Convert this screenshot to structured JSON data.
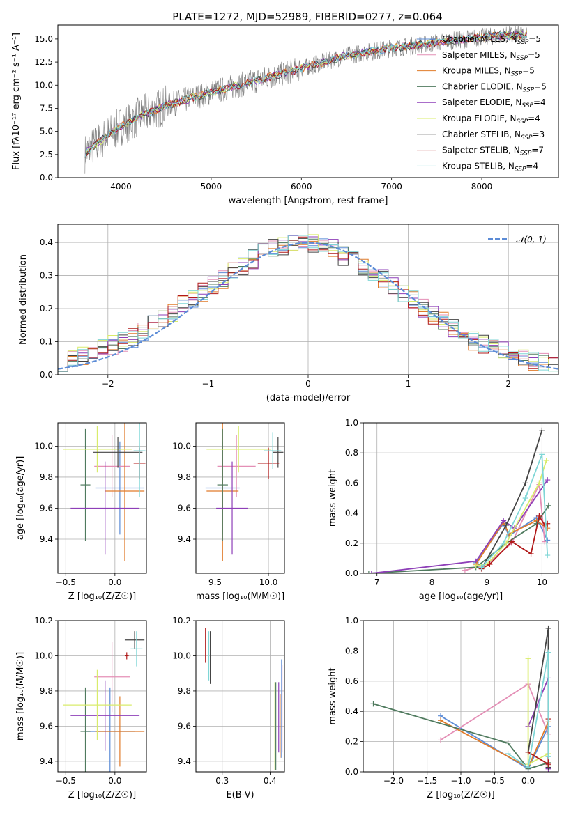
{
  "figure": {
    "title": "PLATE=1272, MJD=52989, FIBERID=0277, z=0.064"
  },
  "colors": {
    "Chabrier MILES": "#5b8bd6",
    "Salpeter MILES": "#e48fb6",
    "Kroupa MILES": "#e07b2a",
    "Chabrier ELODIE": "#4f7a5e",
    "Salpeter ELODIE": "#8e3fb8",
    "Kroupa ELODIE": "#d9ec6b",
    "Chabrier STELIB": "#444444",
    "Salpeter STELIB": "#b11a1a",
    "Kroupa STELIB": "#7fd6d6",
    "data": "#808080",
    "normal": "#5b8bd6"
  },
  "chart_data": [
    {
      "id": "spectrum",
      "type": "line",
      "title": "PLATE=1272, MJD=52989, FIBERID=0277, z=0.064",
      "xlabel": "wavelength [Angstrom, rest frame]",
      "ylabel": "Flux [fλ10⁻¹⁷ erg cm⁻² s⁻¹ A⁻¹]",
      "xlim": [
        3300,
        8850
      ],
      "ylim": [
        0,
        16.5
      ],
      "xticks": [
        4000,
        5000,
        6000,
        7000,
        8000
      ],
      "yticks": [
        0.0,
        2.5,
        5.0,
        7.5,
        10.0,
        12.5,
        15.0
      ],
      "legend": "top-right",
      "spectrum_shape_x": [
        3600,
        3800,
        4000,
        4200,
        4500,
        5000,
        5500,
        6000,
        6500,
        7000,
        7500,
        8000,
        8500
      ],
      "spectrum_shape_y": [
        2.6,
        4.2,
        5.6,
        6.6,
        7.8,
        9.2,
        10.5,
        11.8,
        13.2,
        14.0,
        14.6,
        15.2,
        15.5
      ],
      "series": [
        {
          "name": "Chabrier MILES, N_SSP=5",
          "legend_main": "Chabrier MILES, N",
          "legend_sub": "SSP",
          "legend_tail": "=5",
          "key": "Chabrier MILES"
        },
        {
          "name": "Salpeter MILES, N_SSP=5",
          "legend_main": "Salpeter MILES, N",
          "legend_sub": "SSP",
          "legend_tail": "=5",
          "key": "Salpeter MILES"
        },
        {
          "name": "Kroupa MILES, N_SSP=5",
          "legend_main": "Kroupa MILES, N",
          "legend_sub": "SSP",
          "legend_tail": "=5",
          "key": "Kroupa MILES"
        },
        {
          "name": "Chabrier ELODIE, N_SSP=5",
          "legend_main": "Chabrier ELODIE, N",
          "legend_sub": "SSP",
          "legend_tail": "=5",
          "key": "Chabrier ELODIE"
        },
        {
          "name": "Salpeter ELODIE, N_SSP=4",
          "legend_main": "Salpeter ELODIE, N",
          "legend_sub": "SSP",
          "legend_tail": "=4",
          "key": "Salpeter ELODIE"
        },
        {
          "name": "Kroupa ELODIE, N_SSP=4",
          "legend_main": "Kroupa ELODIE, N",
          "legend_sub": "SSP",
          "legend_tail": "=4",
          "key": "Kroupa ELODIE"
        },
        {
          "name": "Chabrier STELIB, N_SSP=3",
          "legend_main": "Chabrier STELIB, N",
          "legend_sub": "SSP",
          "legend_tail": "=3",
          "key": "Chabrier STELIB"
        },
        {
          "name": "Salpeter STELIB, N_SSP=7",
          "legend_main": "Salpeter STELIB, N",
          "legend_sub": "SSP",
          "legend_tail": "=7",
          "key": "Salpeter STELIB"
        },
        {
          "name": "Kroupa STELIB, N_SSP=4",
          "legend_main": "Kroupa STELIB, N",
          "legend_sub": "SSP",
          "legend_tail": "=4",
          "key": "Kroupa STELIB"
        }
      ]
    },
    {
      "id": "residuals",
      "type": "line",
      "xlabel": "(data-model)/error",
      "ylabel": "Normed distribution",
      "xlim": [
        -2.5,
        2.5
      ],
      "ylim": [
        0,
        0.455
      ],
      "xticks": [
        -2,
        -1,
        0,
        1,
        2
      ],
      "yticks": [
        0.0,
        0.1,
        0.2,
        0.3,
        0.4
      ],
      "grid": true,
      "legend": "top-right",
      "normal_label": "𝒩(0, 1)",
      "normal_mean": 0,
      "normal_sigma": 1,
      "bin_width": 0.1,
      "histogram_shape": [
        0.04,
        0.05,
        0.06,
        0.07,
        0.08,
        0.09,
        0.1,
        0.11,
        0.13,
        0.15,
        0.17,
        0.19,
        0.21,
        0.23,
        0.25,
        0.27,
        0.29,
        0.31,
        0.33,
        0.35,
        0.37,
        0.38,
        0.39,
        0.4,
        0.4,
        0.4,
        0.39,
        0.38,
        0.36,
        0.35,
        0.33,
        0.31,
        0.29,
        0.27,
        0.25,
        0.23,
        0.2,
        0.18,
        0.16,
        0.14,
        0.12,
        0.1,
        0.09,
        0.08,
        0.07,
        0.06,
        0.05,
        0.04,
        0.04,
        0.03
      ]
    },
    {
      "id": "age_vs_Z",
      "type": "scatter",
      "xlabel": "Z [log₁₀(Z/Z☉)]",
      "ylabel": "age  [log₁₀(age/yr)]",
      "xlim": [
        -0.58,
        0.32
      ],
      "ylim": [
        9.18,
        10.15
      ],
      "xticks": [
        -0.5,
        0.0
      ],
      "yticks": [
        9.4,
        9.6,
        9.8,
        10.0
      ],
      "grid": true,
      "points": [
        {
          "key": "Chabrier MILES",
          "x": 0.05,
          "y": 9.73,
          "xerr": 0.25,
          "yerr": 0.3
        },
        {
          "key": "Salpeter MILES",
          "x": -0.03,
          "y": 9.87,
          "xerr": 0.18,
          "yerr": 0.2
        },
        {
          "key": "Kroupa MILES",
          "x": 0.1,
          "y": 9.71,
          "xerr": 0.2,
          "yerr": 0.45
        },
        {
          "key": "Chabrier ELODIE",
          "x": -0.3,
          "y": 9.75,
          "xerr": 0.05,
          "yerr": 0.36
        },
        {
          "key": "Salpeter ELODIE",
          "x": -0.1,
          "y": 9.6,
          "xerr": 0.35,
          "yerr": 0.3
        },
        {
          "key": "Kroupa ELODIE",
          "x": -0.18,
          "y": 9.98,
          "xerr": 0.35,
          "yerr": 0.15
        },
        {
          "key": "Chabrier STELIB",
          "x": 0.03,
          "y": 9.96,
          "xerr": 0.25,
          "yerr": 0.1
        },
        {
          "key": "Salpeter STELIB",
          "x": 0.25,
          "y": 9.89,
          "xerr": 0.06,
          "yerr": 0.1
        },
        {
          "key": "Kroupa STELIB",
          "x": 0.25,
          "y": 9.97,
          "xerr": 0.06,
          "yerr": 0.3
        }
      ]
    },
    {
      "id": "age_vs_mass",
      "type": "scatter",
      "xlabel": "mass [log₁₀(M/M☉)]",
      "xlim": [
        9.32,
        10.15
      ],
      "ylim": [
        9.18,
        10.15
      ],
      "xticks": [
        9.5,
        10.0
      ],
      "yticks": [
        9.4,
        9.6,
        9.8,
        10.0
      ],
      "grid": true,
      "points": [
        {
          "key": "Chabrier MILES",
          "x": 9.57,
          "y": 9.73,
          "xerr": 0.16,
          "yerr": 0.3
        },
        {
          "key": "Salpeter MILES",
          "x": 9.7,
          "y": 9.87,
          "xerr": 0.18,
          "yerr": 0.2
        },
        {
          "key": "Kroupa MILES",
          "x": 9.57,
          "y": 9.71,
          "xerr": 0.15,
          "yerr": 0.45
        },
        {
          "key": "Chabrier ELODIE",
          "x": 9.57,
          "y": 9.75,
          "xerr": 0.05,
          "yerr": 0.36
        },
        {
          "key": "Salpeter ELODIE",
          "x": 9.66,
          "y": 9.6,
          "xerr": 0.15,
          "yerr": 0.3
        },
        {
          "key": "Kroupa ELODIE",
          "x": 9.72,
          "y": 9.98,
          "xerr": 0.3,
          "yerr": 0.15
        },
        {
          "key": "Chabrier STELIB",
          "x": 10.09,
          "y": 9.96,
          "xerr": 0.05,
          "yerr": 0.1
        },
        {
          "key": "Salpeter STELIB",
          "x": 10.0,
          "y": 9.89,
          "xerr": 0.1,
          "yerr": 0.1
        },
        {
          "key": "Kroupa STELIB",
          "x": 10.04,
          "y": 9.97,
          "xerr": 0.08,
          "yerr": 0.12
        }
      ]
    },
    {
      "id": "weight_vs_age",
      "type": "line",
      "xlabel": "age  [log₁₀(age/yr)]",
      "ylabel": "mass weight",
      "xlim": [
        6.75,
        10.3
      ],
      "ylim": [
        0,
        1.0
      ],
      "xticks": [
        7,
        8,
        9,
        10
      ],
      "yticks": [
        0.0,
        0.2,
        0.4,
        0.6,
        0.8,
        1.0
      ],
      "grid": true,
      "series": [
        {
          "key": "Chabrier MILES",
          "x": [
            8.8,
            9.3,
            9.4,
            9.9,
            10.1
          ],
          "y": [
            0.07,
            0.33,
            0.25,
            0.37,
            0.22
          ]
        },
        {
          "key": "Salpeter MILES",
          "x": [
            8.6,
            9.0,
            9.45,
            9.95,
            10.05
          ],
          "y": [
            0.02,
            0.06,
            0.2,
            0.59,
            0.21
          ]
        },
        {
          "key": "Kroupa MILES",
          "x": [
            8.8,
            9.3,
            9.4,
            9.9,
            10.1
          ],
          "y": [
            0.06,
            0.34,
            0.26,
            0.35,
            0.3
          ]
        },
        {
          "key": "Chabrier ELODIE",
          "x": [
            6.85,
            8.8,
            9.35,
            9.9,
            10.12
          ],
          "y": [
            0.0,
            0.04,
            0.2,
            0.33,
            0.45
          ]
        },
        {
          "key": "Salpeter ELODIE",
          "x": [
            6.9,
            8.8,
            9.3,
            9.5,
            10.1
          ],
          "y": [
            0.0,
            0.08,
            0.35,
            0.3,
            0.62
          ]
        },
        {
          "key": "Kroupa ELODIE",
          "x": [
            8.8,
            9.0,
            9.35,
            9.95,
            10.08
          ],
          "y": [
            0.05,
            0.06,
            0.2,
            0.6,
            0.75
          ]
        },
        {
          "key": "Chabrier STELIB",
          "x": [
            8.9,
            9.35,
            9.7,
            10.0
          ],
          "y": [
            0.03,
            0.32,
            0.6,
            0.95
          ]
        },
        {
          "key": "Salpeter STELIB",
          "x": [
            8.9,
            9.05,
            9.45,
            9.8,
            9.95,
            10.05,
            10.1
          ],
          "y": [
            0.03,
            0.06,
            0.21,
            0.13,
            0.38,
            0.32,
            0.33
          ]
        },
        {
          "key": "Kroupa STELIB",
          "x": [
            8.9,
            9.3,
            9.7,
            10.0,
            10.1
          ],
          "y": [
            0.04,
            0.2,
            0.5,
            0.79,
            0.12
          ]
        }
      ]
    },
    {
      "id": "mass_vs_Z",
      "type": "scatter",
      "xlabel": "Z [log₁₀(Z/Z☉)]",
      "ylabel": "mass [log₁₀(M/M☉)]",
      "xlim": [
        -0.58,
        0.32
      ],
      "ylim": [
        9.34,
        10.2
      ],
      "xticks": [
        -0.5,
        0.0
      ],
      "yticks": [
        9.4,
        9.6,
        9.8,
        10.0,
        10.2
      ],
      "grid": true,
      "points": [
        {
          "key": "Chabrier MILES",
          "x": -0.05,
          "y": 9.57,
          "xerr": 0.25,
          "yerr": 0.25
        },
        {
          "key": "Salpeter MILES",
          "x": -0.03,
          "y": 9.88,
          "xerr": 0.18,
          "yerr": 0.2
        },
        {
          "key": "Kroupa MILES",
          "x": 0.05,
          "y": 9.57,
          "xerr": 0.25,
          "yerr": 0.2
        },
        {
          "key": "Chabrier ELODIE",
          "x": -0.3,
          "y": 9.57,
          "xerr": 0.05,
          "yerr": 0.25
        },
        {
          "key": "Salpeter ELODIE",
          "x": -0.1,
          "y": 9.66,
          "xerr": 0.35,
          "yerr": 0.2
        },
        {
          "key": "Kroupa ELODIE",
          "x": -0.18,
          "y": 9.72,
          "xerr": 0.35,
          "yerr": 0.2
        },
        {
          "key": "Chabrier STELIB",
          "x": 0.2,
          "y": 10.09,
          "xerr": 0.1,
          "yerr": 0.05
        },
        {
          "key": "Salpeter STELIB",
          "x": 0.12,
          "y": 10.0,
          "xerr": 0.02,
          "yerr": 0.02
        },
        {
          "key": "Kroupa STELIB",
          "x": 0.22,
          "y": 10.04,
          "xerr": 0.06,
          "yerr": 0.1
        }
      ]
    },
    {
      "id": "mass_vs_EBV",
      "type": "scatter",
      "xlabel": "E(B-V)",
      "xlim": [
        0.245,
        0.43
      ],
      "ylim": [
        9.34,
        10.2
      ],
      "xticks": [
        0.3,
        0.4
      ],
      "yticks": [
        9.4,
        9.6,
        9.8,
        10.0,
        10.2
      ],
      "grid": true,
      "points": [
        {
          "key": "Chabrier MILES",
          "x": 0.424,
          "y": 9.7,
          "xerr": 0.0,
          "yerr": 0.28
        },
        {
          "key": "Salpeter MILES",
          "x": 0.425,
          "y": 9.7,
          "xerr": 0.0,
          "yerr": 0.25
        },
        {
          "key": "Kroupa MILES",
          "x": 0.421,
          "y": 9.6,
          "xerr": 0.0,
          "yerr": 0.18
        },
        {
          "key": "Chabrier ELODIE",
          "x": 0.412,
          "y": 9.6,
          "xerr": 0.0,
          "yerr": 0.25
        },
        {
          "key": "Salpeter ELODIE",
          "x": 0.418,
          "y": 9.65,
          "xerr": 0.0,
          "yerr": 0.2
        },
        {
          "key": "Kroupa ELODIE",
          "x": 0.41,
          "y": 9.6,
          "xerr": 0.0,
          "yerr": 0.25
        },
        {
          "key": "Chabrier STELIB",
          "x": 0.275,
          "y": 9.99,
          "xerr": 0.0,
          "yerr": 0.15
        },
        {
          "key": "Salpeter STELIB",
          "x": 0.265,
          "y": 10.06,
          "xerr": 0.0,
          "yerr": 0.1
        },
        {
          "key": "Kroupa STELIB",
          "x": 0.272,
          "y": 10.0,
          "xerr": 0.0,
          "yerr": 0.14
        }
      ]
    },
    {
      "id": "weight_vs_Z",
      "type": "line",
      "xlabel": "Z [log₁₀(Z/Z☉)]",
      "ylabel": "mass weight",
      "xlim": [
        -2.45,
        0.45
      ],
      "ylim": [
        0,
        1.0
      ],
      "xticks": [
        -2.0,
        -1.5,
        -1.0,
        -0.5,
        0.0
      ],
      "yticks": [
        0.0,
        0.2,
        0.4,
        0.6,
        0.8,
        1.0
      ],
      "grid": true,
      "series": [
        {
          "key": "Chabrier MILES",
          "x": [
            -1.3,
            0.0,
            0.3,
            0.3
          ],
          "y": [
            0.37,
            0.02,
            0.3,
            0.05
          ]
        },
        {
          "key": "Salpeter MILES",
          "x": [
            -1.3,
            0.0,
            0.3,
            0.3
          ],
          "y": [
            0.21,
            0.58,
            0.25,
            0.02
          ]
        },
        {
          "key": "Kroupa MILES",
          "x": [
            -1.3,
            0.0,
            0.3,
            0.3
          ],
          "y": [
            0.34,
            0.03,
            0.33,
            0.04
          ]
        },
        {
          "key": "Chabrier ELODIE",
          "x": [
            -2.3,
            -0.3,
            0.0,
            0.3
          ],
          "y": [
            0.45,
            0.19,
            0.02,
            0.06
          ]
        },
        {
          "key": "Salpeter ELODIE",
          "x": [
            0.0,
            0.3,
            0.3
          ],
          "y": [
            0.3,
            0.62,
            0.02
          ]
        },
        {
          "key": "Kroupa ELODIE",
          "x": [
            0.0,
            0.0,
            0.3
          ],
          "y": [
            0.75,
            0.05,
            0.12
          ]
        },
        {
          "key": "Chabrier STELIB",
          "x": [
            0.0,
            0.3,
            0.3
          ],
          "y": [
            0.13,
            0.95,
            0.03
          ]
        },
        {
          "key": "Salpeter STELIB",
          "x": [
            0.0,
            0.3,
            0.3
          ],
          "y": [
            0.13,
            0.05,
            0.35
          ]
        },
        {
          "key": "Kroupa STELIB",
          "x": [
            -0.3,
            0.0,
            0.3,
            0.3
          ],
          "y": [
            0.12,
            0.03,
            0.79,
            0.1
          ]
        }
      ]
    }
  ]
}
